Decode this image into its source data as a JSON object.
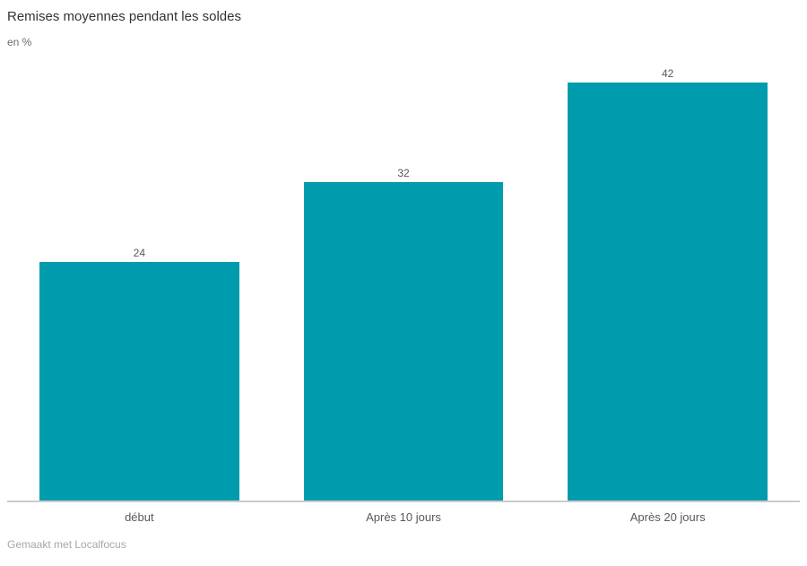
{
  "chart": {
    "title": "Remises moyennes pendant les soldes",
    "subtitle": "en %",
    "footer_credit": "Gemaakt met Localfocus"
  },
  "chart_data": {
    "type": "bar",
    "title": "Remises moyennes pendant les soldes",
    "subtitle": "en %",
    "categories": [
      "début",
      "Après 10 jours",
      "Après 20 jours"
    ],
    "values": [
      24,
      32,
      42
    ],
    "value_labels": [
      "24",
      "32",
      "42"
    ],
    "xlabel": "",
    "ylabel": "en %",
    "ylim": [
      0,
      46
    ],
    "grid": false,
    "legend": false,
    "bar_color": "#009cad",
    "axis_line_color": "#cccccc",
    "label_color": "#595959"
  }
}
